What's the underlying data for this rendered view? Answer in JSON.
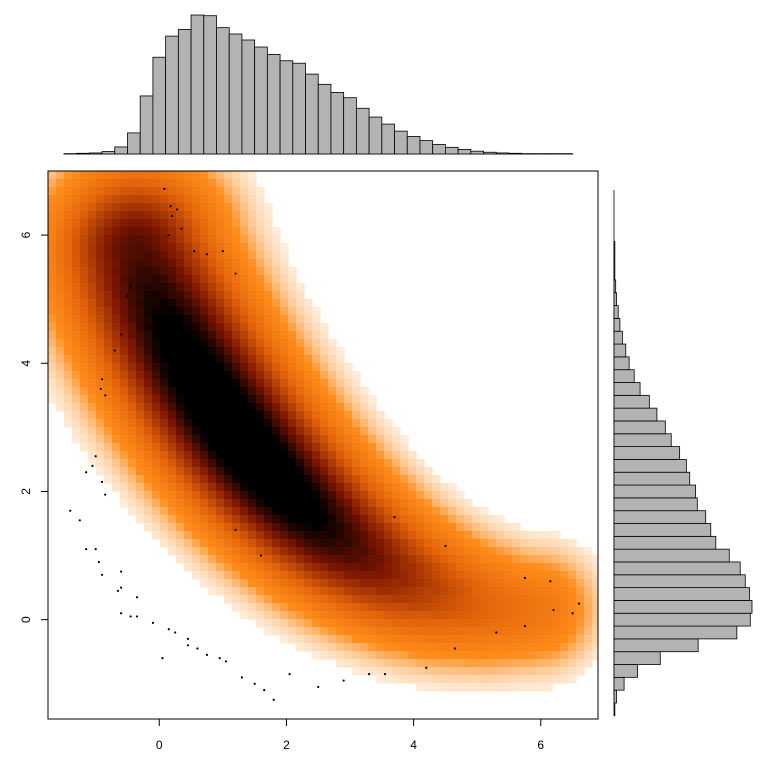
{
  "chart_data": {
    "type": "scatter",
    "subtype": "smoothed-density-with-marginal-histograms",
    "title": "",
    "xlabel": "",
    "ylabel": "",
    "xlim": [
      -1.75,
      6.9
    ],
    "ylim": [
      -1.55,
      7.0
    ],
    "x_ticks": [
      "0",
      "2",
      "4",
      "6"
    ],
    "y_ticks": [
      "0",
      "2",
      "4",
      "6"
    ],
    "x_tick_values": [
      0,
      2,
      4,
      6
    ],
    "y_tick_values": [
      0,
      2,
      4,
      6
    ],
    "density_colors": [
      "#ffffff",
      "#ff8c1a",
      "#e3630a",
      "#7a1400",
      "#000000"
    ],
    "outlier_points": [
      [
        0.08,
        6.72
      ],
      [
        0.18,
        6.45
      ],
      [
        0.2,
        6.3
      ],
      [
        0.28,
        6.4
      ],
      [
        0.15,
        6.0
      ],
      [
        0.35,
        6.1
      ],
      [
        0.55,
        5.75
      ],
      [
        0.75,
        5.7
      ],
      [
        1.0,
        5.75
      ],
      [
        1.2,
        5.4
      ],
      [
        -0.45,
        5.2
      ],
      [
        -0.5,
        5.05
      ],
      [
        -0.6,
        4.45
      ],
      [
        -0.7,
        4.2
      ],
      [
        -0.9,
        3.75
      ],
      [
        -0.92,
        3.6
      ],
      [
        -0.85,
        3.5
      ],
      [
        -1.0,
        2.55
      ],
      [
        -1.05,
        2.4
      ],
      [
        -1.15,
        2.3
      ],
      [
        -0.9,
        2.15
      ],
      [
        -0.85,
        1.95
      ],
      [
        -1.4,
        1.7
      ],
      [
        -1.25,
        1.55
      ],
      [
        -1.15,
        1.1
      ],
      [
        -1.0,
        1.1
      ],
      [
        -0.95,
        0.9
      ],
      [
        -0.6,
        0.75
      ],
      [
        -0.9,
        0.7
      ],
      [
        -0.6,
        0.5
      ],
      [
        -0.65,
        0.45
      ],
      [
        -0.35,
        0.35
      ],
      [
        -0.6,
        0.1
      ],
      [
        -0.45,
        0.05
      ],
      [
        -0.35,
        0.05
      ],
      [
        -0.1,
        -0.05
      ],
      [
        0.05,
        -0.6
      ],
      [
        0.15,
        -0.15
      ],
      [
        0.25,
        -0.2
      ],
      [
        0.45,
        -0.3
      ],
      [
        0.45,
        -0.4
      ],
      [
        0.6,
        -0.45
      ],
      [
        0.75,
        -0.55
      ],
      [
        0.95,
        -0.6
      ],
      [
        1.05,
        -0.65
      ],
      [
        1.3,
        -0.9
      ],
      [
        1.5,
        -1.0
      ],
      [
        1.65,
        -1.1
      ],
      [
        1.8,
        -1.25
      ],
      [
        2.05,
        -0.85
      ],
      [
        2.5,
        -1.05
      ],
      [
        2.9,
        -0.95
      ],
      [
        3.3,
        -0.85
      ],
      [
        3.55,
        -0.85
      ],
      [
        4.2,
        -0.75
      ],
      [
        4.65,
        -0.45
      ],
      [
        5.3,
        -0.2
      ],
      [
        5.75,
        -0.1
      ],
      [
        6.2,
        0.15
      ],
      [
        6.5,
        0.1
      ],
      [
        6.6,
        0.25
      ],
      [
        6.15,
        0.6
      ],
      [
        5.75,
        0.65
      ],
      [
        3.7,
        1.6
      ],
      [
        4.5,
        1.15
      ],
      [
        1.2,
        1.4
      ],
      [
        1.6,
        1.0
      ]
    ],
    "x_histogram": {
      "bin_start": -1.5,
      "bin_width": 0.2,
      "counts": [
        1,
        2,
        3,
        7,
        20,
        60,
        165,
        275,
        335,
        354,
        395,
        393,
        359,
        341,
        324,
        304,
        283,
        265,
        258,
        227,
        198,
        175,
        160,
        130,
        105,
        85,
        65,
        50,
        38,
        27,
        19,
        13,
        8,
        5,
        3,
        2,
        1,
        1,
        1,
        1
      ]
    },
    "y_histogram": {
      "bin_start": -1.5,
      "bin_width": 0.2,
      "counts": [
        1,
        3,
        12,
        28,
        55,
        100,
        146,
        162,
        164,
        161,
        156,
        150,
        137,
        121,
        115,
        109,
        99,
        97,
        90,
        86,
        78,
        68,
        61,
        51,
        42,
        31,
        24,
        18,
        14,
        10,
        7,
        5,
        3,
        2,
        1,
        1,
        1,
        0,
        0,
        0,
        0,
        0
      ]
    }
  }
}
